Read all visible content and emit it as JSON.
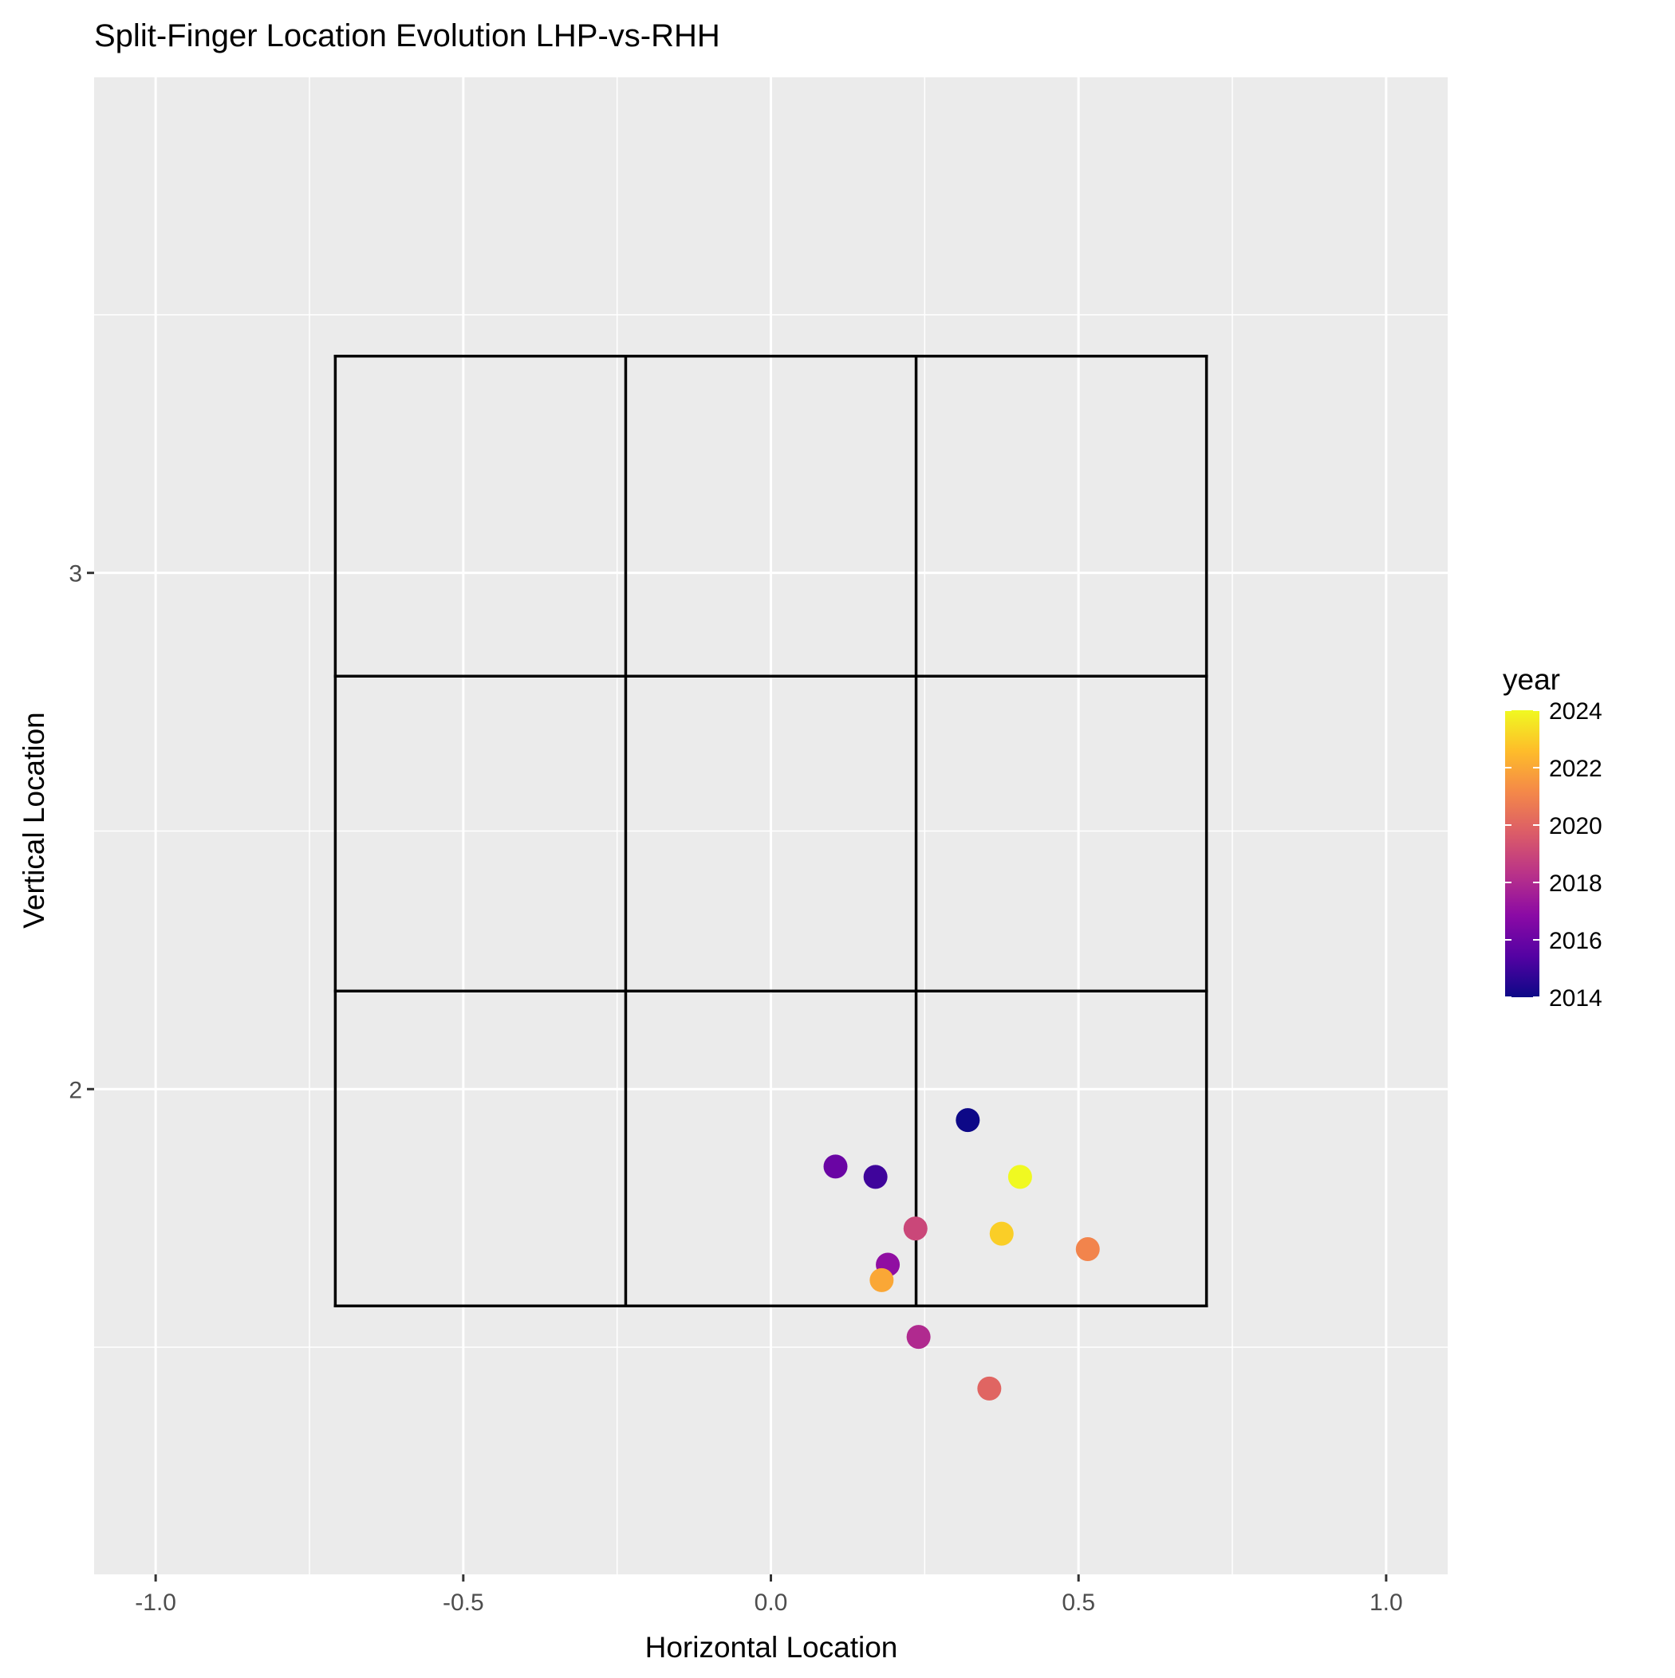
{
  "chart_data": {
    "type": "scatter",
    "title": "Split-Finger Location Evolution LHP-vs-RHH",
    "xlabel": "Horizontal Location",
    "ylabel": "Vertical Location",
    "xlim": [
      -1.1,
      1.1
    ],
    "ylim": [
      1.06,
      3.96
    ],
    "x_ticks": [
      -1.0,
      -0.5,
      0.0,
      0.5,
      1.0
    ],
    "x_tick_labels": [
      "-1.0",
      "-0.5",
      "0.0",
      "0.5",
      "1.0"
    ],
    "y_ticks": [
      2,
      3
    ],
    "y_tick_labels": [
      "2",
      "3"
    ],
    "grid": true,
    "strike_zone": {
      "x": [
        -0.708,
        -0.236,
        0.236,
        0.708
      ],
      "y": [
        1.58,
        2.19,
        2.8,
        3.42
      ]
    },
    "legend": {
      "title": "year",
      "placement": "right",
      "min": 2014,
      "max": 2024,
      "ticks": [
        2014,
        2016,
        2018,
        2020,
        2022,
        2024
      ],
      "tick_labels": [
        "2014",
        "2016",
        "2018",
        "2020",
        "2022",
        "2024"
      ],
      "palette": [
        "#0D0887",
        "#5402A3",
        "#8B0AA5",
        "#B93289",
        "#DB5C68",
        "#F48849",
        "#FEBC2A",
        "#F0F921"
      ]
    },
    "points": [
      {
        "year": 2014,
        "x": 0.32,
        "y": 1.94
      },
      {
        "year": 2015,
        "x": 0.17,
        "y": 1.83
      },
      {
        "year": 2016,
        "x": 0.105,
        "y": 1.85
      },
      {
        "year": 2017,
        "x": 0.19,
        "y": 1.66
      },
      {
        "year": 2018,
        "x": 0.24,
        "y": 1.52
      },
      {
        "year": 2019,
        "x": 0.235,
        "y": 1.73
      },
      {
        "year": 2020,
        "x": 0.355,
        "y": 1.42
      },
      {
        "year": 2021,
        "x": 0.515,
        "y": 1.69
      },
      {
        "year": 2022,
        "x": 0.18,
        "y": 1.63
      },
      {
        "year": 2023,
        "x": 0.375,
        "y": 1.72
      },
      {
        "year": 2024,
        "x": 0.405,
        "y": 1.83
      }
    ]
  }
}
